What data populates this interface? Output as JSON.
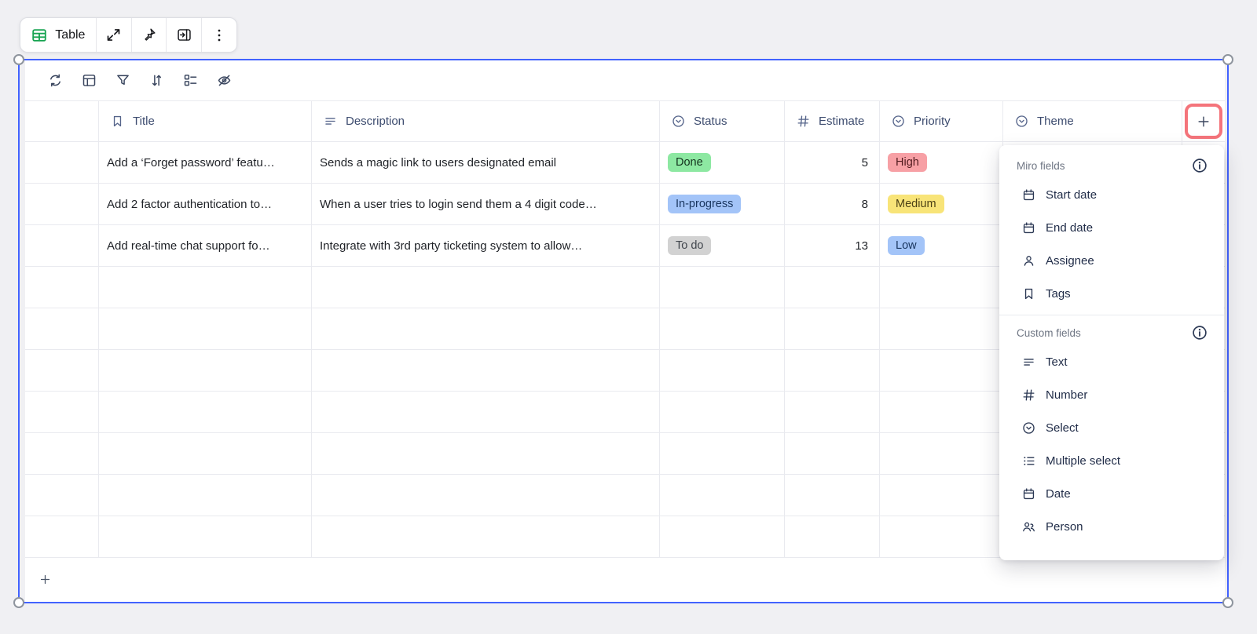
{
  "colors": {
    "selection_border_blue": "#4262ff",
    "highlight_ring_red": "#f4747b",
    "table_icon_green": "#18a452",
    "badge_done_bg": "#8de8a2",
    "badge_in_progress_bg": "#a3c4f8",
    "badge_todo_bg": "#d2d2d2",
    "badge_high_bg": "#f7a0a5",
    "badge_medium_bg": "#f8e478",
    "badge_low_bg": "#a3c4f8",
    "page_background": "#f0f0f3"
  },
  "floating_toolbar": {
    "table_button_label": "Table",
    "icons": [
      "table-icon",
      "expand-icon",
      "pin-icon",
      "open-sidebar-icon",
      "kebab-menu-icon"
    ]
  },
  "table_toolbar": {
    "icons": [
      "sync-icon",
      "layout-icon",
      "filter-icon",
      "sort-icon",
      "fields-icon",
      "hide-icon"
    ]
  },
  "table": {
    "columns": [
      {
        "label": "Title",
        "icon": "bookmark-icon"
      },
      {
        "label": "Description",
        "icon": "text-lines-icon"
      },
      {
        "label": "Status",
        "icon": "select-circle-icon"
      },
      {
        "label": "Estimate",
        "icon": "hash-icon"
      },
      {
        "label": "Priority",
        "icon": "select-circle-icon"
      },
      {
        "label": "Theme",
        "icon": "select-circle-icon"
      }
    ],
    "add_column_icon": "plus-icon",
    "rows": [
      {
        "title": "Add a ‘Forget password’ featu…",
        "description": "Sends a magic link to users designated email",
        "status": "Done",
        "status_variant": "done",
        "estimate": "5",
        "priority": "High",
        "priority_variant": "high"
      },
      {
        "title": "Add 2 factor authentication to…",
        "description": "When a user tries to login send them a 4 digit code…",
        "status": "In-progress",
        "status_variant": "in-progress",
        "estimate": "8",
        "priority": "Medium",
        "priority_variant": "medium"
      },
      {
        "title": "Add real-time chat support fo…",
        "description": "Integrate with 3rd party ticketing system to allow…",
        "status": "To do",
        "status_variant": "todo",
        "estimate": "13",
        "priority": "Low",
        "priority_variant": "low"
      }
    ],
    "empty_row_count": 7,
    "add_row_icon": "plus-icon"
  },
  "field_menu": {
    "sections": [
      {
        "label": "Miro fields",
        "info_icon": "info-icon",
        "items": [
          {
            "label": "Start date",
            "icon": "calendar-icon"
          },
          {
            "label": "End date",
            "icon": "calendar-icon"
          },
          {
            "label": "Assignee",
            "icon": "person-icon"
          },
          {
            "label": "Tags",
            "icon": "bookmark-icon"
          }
        ]
      },
      {
        "label": "Custom fields",
        "info_icon": "info-icon",
        "items": [
          {
            "label": "Text",
            "icon": "text-lines-icon"
          },
          {
            "label": "Number",
            "icon": "hash-icon"
          },
          {
            "label": "Select",
            "icon": "select-circle-icon"
          },
          {
            "label": "Multiple select",
            "icon": "bullet-list-icon"
          },
          {
            "label": "Date",
            "icon": "calendar-icon"
          },
          {
            "label": "Person",
            "icon": "people-icon"
          }
        ]
      }
    ]
  }
}
